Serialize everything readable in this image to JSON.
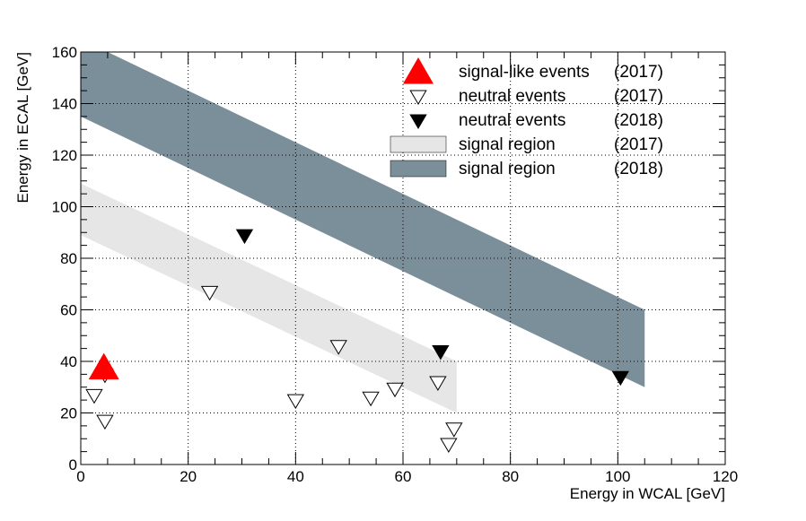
{
  "chart_data": {
    "type": "scatter",
    "xlabel": "Energy in WCAL [GeV]",
    "ylabel": "Energy in ECAL [GeV]",
    "xlim": [
      0,
      120
    ],
    "ylim": [
      0,
      160
    ],
    "x_ticks": [
      0,
      20,
      40,
      60,
      80,
      100,
      120
    ],
    "y_ticks": [
      0,
      20,
      40,
      60,
      80,
      100,
      120,
      140,
      160
    ],
    "grid": true,
    "legend_placement": "top-right",
    "regions": [
      {
        "name": "signal region",
        "year": "(2017)",
        "color": "#e6e6e6",
        "polygon": [
          [
            0,
            89
          ],
          [
            0,
            109
          ],
          [
            70,
            40
          ],
          [
            70,
            20
          ]
        ]
      },
      {
        "name": "signal region",
        "year": "(2018)",
        "color": "#7b8f9b",
        "polygon": [
          [
            0,
            135
          ],
          [
            0,
            165
          ],
          [
            105,
            60
          ],
          [
            105,
            30
          ]
        ]
      }
    ],
    "series": [
      {
        "name": "signal-like events",
        "year": "(2017)",
        "marker": "triangle-up-filled",
        "color": "#ff0000",
        "points": [
          [
            4.3,
            37
          ]
        ]
      },
      {
        "name": "neutral events",
        "year": "(2017)",
        "marker": "triangle-down-open",
        "color": "#000000",
        "points": [
          [
            2.5,
            27
          ],
          [
            4.5,
            35
          ],
          [
            4.5,
            17
          ],
          [
            24,
            67
          ],
          [
            40,
            25
          ],
          [
            48,
            46
          ],
          [
            54,
            26
          ],
          [
            58.5,
            29.5
          ],
          [
            66.5,
            32
          ],
          [
            68.5,
            8
          ],
          [
            69.5,
            14
          ]
        ]
      },
      {
        "name": "neutral events",
        "year": "(2018)",
        "marker": "triangle-down-filled",
        "color": "#000000",
        "points": [
          [
            30.5,
            89
          ],
          [
            67,
            44
          ],
          [
            100.5,
            34
          ]
        ]
      }
    ]
  }
}
